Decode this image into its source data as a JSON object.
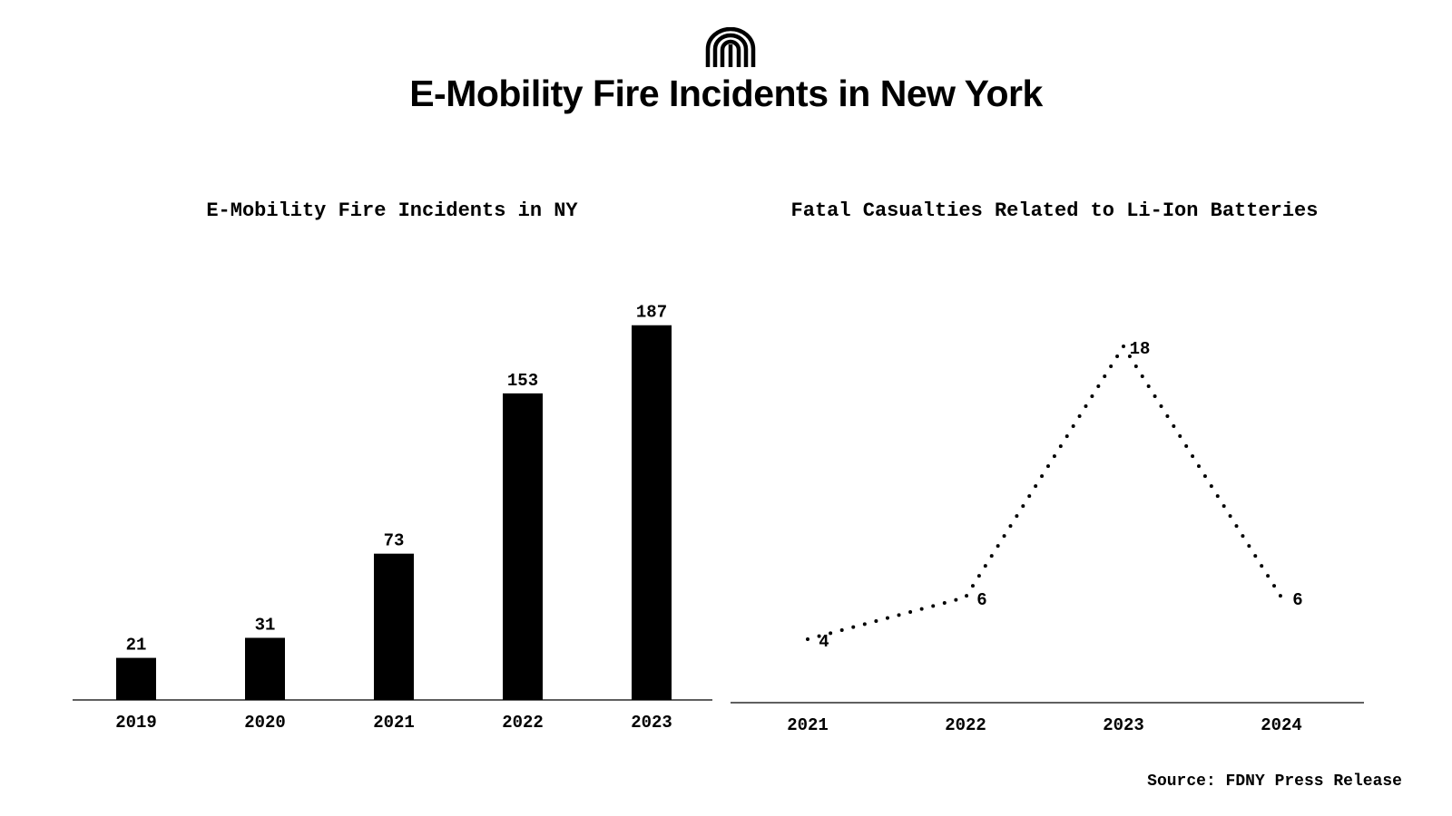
{
  "header": {
    "title": "E-Mobility Fire Incidents in New York",
    "logo_icon": "mm-arch-logo-icon"
  },
  "footer": {
    "source": "Source: FDNY Press Release"
  },
  "colors": {
    "ink": "#000000",
    "background": "#ffffff"
  },
  "chart_data": [
    {
      "type": "bar",
      "title": "E-Mobility Fire Incidents in NY",
      "categories": [
        "2019",
        "2020",
        "2021",
        "2022",
        "2023"
      ],
      "values": [
        21,
        31,
        73,
        153,
        187
      ],
      "ylim": [
        0,
        200
      ],
      "grid": false,
      "legend": "none"
    },
    {
      "type": "line",
      "title": "Fatal Casualties Related to Li-Ion Batteries",
      "categories": [
        "2021",
        "2022",
        "2023",
        "2024"
      ],
      "values": [
        4,
        6,
        18,
        6
      ],
      "line_style": "dotted",
      "ylim": [
        0,
        20
      ],
      "grid": false,
      "legend": "none"
    }
  ]
}
